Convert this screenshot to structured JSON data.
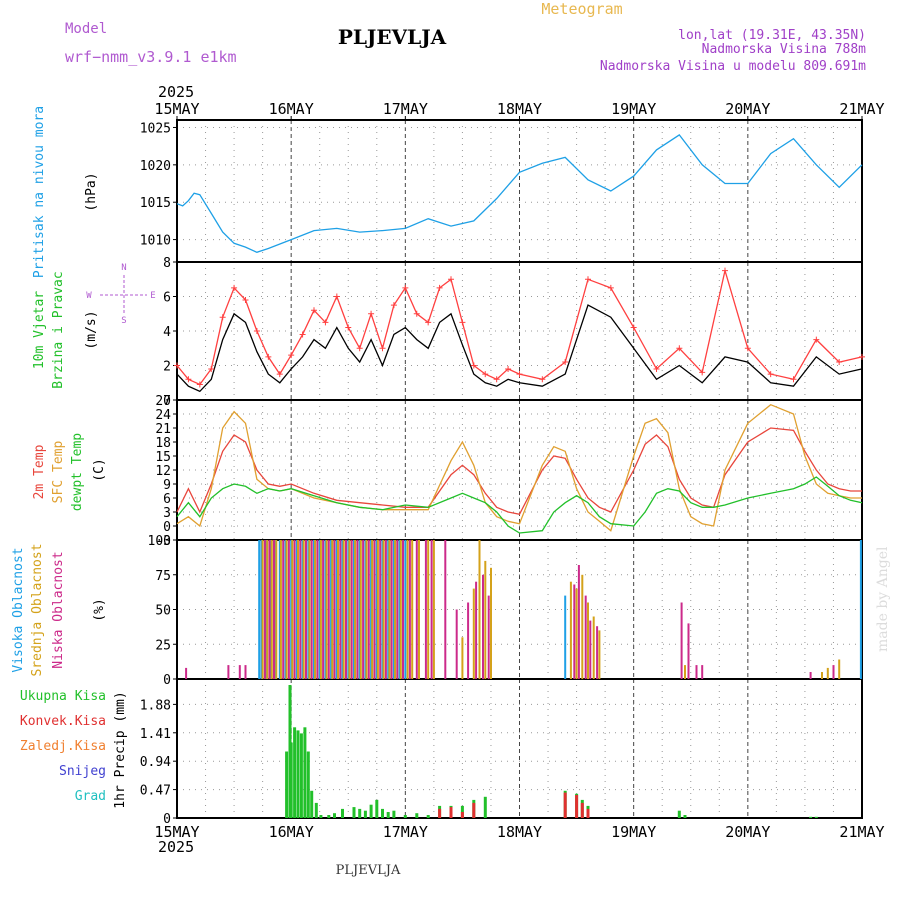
{
  "header": {
    "model_label": "Model",
    "model_name": "wrf−nmm_v3.9.1  e1km",
    "station": "PLJEVLJA",
    "meteogram": "Meteogram",
    "lonlat": "lon,lat (19.31E, 43.35N)",
    "elevation": "Nadmorska Visina 788m",
    "model_elevation": "Nadmorska Visina u modelu 809.691m",
    "footer_station": "PLJEVLJA",
    "watermark": "made by Angel"
  },
  "colors": {
    "pressure": "#1ea0e6",
    "temp2m": "#e8463c",
    "sfc": "#e0a030",
    "dewpt": "#22c02a",
    "wind_speed": "#000000",
    "wind_gust": "#ff4040",
    "high_cloud": "#1ea0e6",
    "mid_cloud": "#d4a21a",
    "low_cloud": "#cc2a8a",
    "total_precip": "#22c02a",
    "conv_precip": "#e03030",
    "frozen_precip": "#f08030",
    "snow": "#4040d0",
    "hail": "#20c0c0",
    "model_label": "#b05ad0",
    "meteogram": "#e8b850",
    "info": "#a040c8"
  },
  "time_axis": {
    "top_year": "2025",
    "bottom_year": "2025",
    "labels": [
      "15MAY",
      "16MAY",
      "17MAY",
      "18MAY",
      "19MAY",
      "20MAY",
      "21MAY"
    ]
  },
  "chart_data": [
    {
      "type": "line",
      "id": "pressure",
      "ylabel_title": "Pritisak na nivou mora",
      "unit": "(hPa)",
      "ylim": [
        1007,
        1026
      ],
      "yticks": [
        1010,
        1015,
        1020,
        1025
      ],
      "grid": true,
      "x_days": [
        0,
        0.05,
        0.1,
        0.15,
        0.2,
        0.3,
        0.4,
        0.5,
        0.6,
        0.7,
        0.8,
        1.0,
        1.2,
        1.4,
        1.6,
        1.8,
        2.0,
        2.2,
        2.4,
        2.6,
        2.8,
        3.0,
        3.2,
        3.4,
        3.6,
        3.8,
        4.0,
        4.2,
        4.4,
        4.6,
        4.8,
        5.0,
        5.2,
        5.4,
        5.6,
        5.8,
        6.0
      ],
      "series": [
        {
          "key": "pressure",
          "values": [
            1014.8,
            1014.5,
            1015.2,
            1016.2,
            1016.0,
            1013.5,
            1011.0,
            1009.5,
            1009.0,
            1008.3,
            1008.8,
            1010.0,
            1011.2,
            1011.5,
            1011.0,
            1011.2,
            1011.5,
            1012.8,
            1011.8,
            1012.5,
            1015.5,
            1019.0,
            1020.2,
            1021.0,
            1018.0,
            1016.5,
            1018.5,
            1022.0,
            1024.0,
            1020.0,
            1017.5,
            1017.5,
            1021.5,
            1023.5,
            1020.0,
            1017.0,
            1020.0
          ]
        }
      ]
    },
    {
      "type": "line",
      "id": "wind",
      "ylabel_title": "10m Vjetar",
      "ylabel_title2": "Brzina i Pravac",
      "unit": "(m/s)",
      "compass": [
        "N",
        "S",
        "E",
        "W"
      ],
      "ylim": [
        0,
        8
      ],
      "yticks": [
        0,
        2,
        4,
        6,
        8
      ],
      "grid": true,
      "x_days": [
        0,
        0.1,
        0.2,
        0.3,
        0.4,
        0.5,
        0.6,
        0.7,
        0.8,
        0.9,
        1.0,
        1.1,
        1.2,
        1.3,
        1.4,
        1.5,
        1.6,
        1.7,
        1.8,
        1.9,
        2.0,
        2.1,
        2.2,
        2.3,
        2.4,
        2.5,
        2.6,
        2.7,
        2.8,
        2.9,
        3.0,
        3.2,
        3.4,
        3.6,
        3.8,
        4.0,
        4.2,
        4.4,
        4.6,
        4.8,
        5.0,
        5.2,
        5.4,
        5.6,
        5.8,
        6.0
      ],
      "series": [
        {
          "key": "wind_speed",
          "values": [
            1.5,
            0.8,
            0.5,
            1.2,
            3.5,
            5.0,
            4.5,
            2.8,
            1.5,
            1.0,
            1.8,
            2.5,
            3.5,
            3.0,
            4.2,
            3.0,
            2.2,
            3.5,
            2.0,
            3.8,
            4.2,
            3.5,
            3.0,
            4.5,
            5.0,
            3.2,
            1.5,
            1.0,
            0.8,
            1.2,
            1.0,
            0.8,
            1.5,
            5.5,
            4.8,
            3.0,
            1.2,
            2.0,
            1.0,
            2.5,
            2.2,
            1.0,
            0.8,
            2.5,
            1.5,
            1.8
          ]
        },
        {
          "key": "wind_gust",
          "values": [
            2.0,
            1.2,
            0.9,
            1.8,
            4.8,
            6.5,
            5.8,
            4.0,
            2.5,
            1.5,
            2.6,
            3.8,
            5.2,
            4.5,
            6.0,
            4.2,
            3.0,
            5.0,
            3.0,
            5.5,
            6.5,
            5.0,
            4.5,
            6.5,
            7.0,
            4.5,
            2.0,
            1.5,
            1.2,
            1.8,
            1.5,
            1.2,
            2.2,
            7.0,
            6.5,
            4.2,
            1.8,
            3.0,
            1.6,
            7.5,
            3.0,
            1.5,
            1.2,
            3.5,
            2.2,
            2.5
          ]
        }
      ]
    },
    {
      "type": "line",
      "id": "temperature",
      "ylabel_title": "2m Temp",
      "ylabel_title2": "SFC Temp",
      "ylabel_title3": "dewpt Temp",
      "unit": "(C)",
      "ylim": [
        -3,
        27
      ],
      "yticks": [
        -3,
        0,
        3,
        6,
        9,
        12,
        15,
        18,
        21,
        24,
        27
      ],
      "grid": true,
      "x_days": [
        0,
        0.1,
        0.2,
        0.3,
        0.4,
        0.5,
        0.6,
        0.7,
        0.8,
        0.9,
        1.0,
        1.2,
        1.4,
        1.6,
        1.8,
        2.0,
        2.2,
        2.4,
        2.5,
        2.6,
        2.7,
        2.8,
        2.9,
        3.0,
        3.2,
        3.3,
        3.4,
        3.5,
        3.6,
        3.7,
        3.8,
        4.0,
        4.1,
        4.2,
        4.3,
        4.4,
        4.5,
        4.6,
        4.7,
        4.8,
        5.0,
        5.2,
        5.4,
        5.5,
        5.6,
        5.7,
        5.8,
        5.9,
        6.0
      ],
      "series": [
        {
          "key": "temp2m",
          "values": [
            3.0,
            8.0,
            3.0,
            9.0,
            16.0,
            19.5,
            18.0,
            12.0,
            9.0,
            8.5,
            9.0,
            7.0,
            5.5,
            5.0,
            4.5,
            4.0,
            4.0,
            11.0,
            13.0,
            11.0,
            7.0,
            4.0,
            3.0,
            2.5,
            12.0,
            15.0,
            14.5,
            10.0,
            6.0,
            4.0,
            3.0,
            12.0,
            17.5,
            19.5,
            17.0,
            10.0,
            6.0,
            4.5,
            4.0,
            11.0,
            18.0,
            21.0,
            20.5,
            16.0,
            12.0,
            9.0,
            8.0,
            7.5,
            7.5
          ]
        },
        {
          "key": "sfc",
          "values": [
            0.5,
            2.0,
            0.0,
            8.0,
            21.0,
            24.5,
            22.0,
            10.0,
            8.0,
            7.5,
            8.0,
            6.0,
            5.0,
            4.0,
            3.5,
            3.5,
            3.5,
            14.0,
            18.0,
            13.0,
            5.0,
            2.0,
            1.0,
            0.5,
            13.0,
            17.0,
            16.0,
            8.0,
            3.0,
            1.0,
            -1.0,
            15.0,
            22.0,
            23.0,
            20.0,
            8.0,
            2.0,
            0.5,
            0.0,
            12.0,
            22.0,
            26.0,
            24.0,
            15.0,
            9.0,
            7.0,
            6.5,
            6.0,
            6.0
          ]
        },
        {
          "key": "dewpt",
          "values": [
            2.0,
            5.0,
            2.0,
            6.0,
            8.0,
            9.0,
            8.5,
            7.0,
            8.0,
            7.5,
            8.0,
            6.5,
            5.0,
            4.0,
            3.5,
            4.5,
            4.0,
            6.0,
            7.0,
            6.0,
            5.0,
            3.0,
            0.0,
            -1.5,
            -1.0,
            3.0,
            5.0,
            6.5,
            5.0,
            2.0,
            0.5,
            0.0,
            3.0,
            7.0,
            8.0,
            7.5,
            5.0,
            4.0,
            4.0,
            4.5,
            6.0,
            7.0,
            8.0,
            9.0,
            10.5,
            8.5,
            6.5,
            5.5,
            5.0
          ]
        }
      ]
    },
    {
      "type": "bar",
      "id": "clouds",
      "ylabel_title": "Visoka Oblacnost",
      "ylabel_title2": "Srednja Oblacnost",
      "ylabel_title3": "Niska Oblacnost",
      "unit": "(%)",
      "ylim": [
        0,
        100
      ],
      "yticks": [
        0,
        25,
        50,
        75,
        100
      ],
      "grid": true,
      "series": [
        {
          "key": "high_cloud",
          "x_days": [
            0.72,
            0.74,
            0.78,
            0.82,
            0.86,
            0.9,
            0.95,
            1.0,
            1.05,
            1.1,
            1.15,
            1.2,
            1.25,
            1.3,
            1.35,
            1.4,
            1.45,
            1.5,
            1.55,
            1.6,
            1.65,
            1.7,
            1.75,
            1.8,
            1.85,
            1.9,
            1.95,
            2.0,
            3.4,
            5.99
          ],
          "values": [
            100,
            100,
            100,
            100,
            100,
            100,
            100,
            100,
            100,
            100,
            100,
            100,
            100,
            100,
            100,
            100,
            100,
            100,
            100,
            100,
            100,
            100,
            100,
            100,
            100,
            100,
            100,
            100,
            60,
            100
          ]
        },
        {
          "key": "mid_cloud",
          "x_days": [
            0.75,
            0.79,
            0.83,
            0.87,
            0.91,
            0.96,
            1.01,
            1.06,
            1.11,
            1.16,
            1.21,
            1.26,
            1.31,
            1.36,
            1.41,
            1.46,
            1.51,
            1.56,
            1.61,
            1.66,
            1.71,
            1.76,
            1.81,
            1.86,
            1.91,
            1.96,
            2.02,
            2.06,
            2.12,
            2.2,
            2.25,
            2.5,
            2.6,
            2.65,
            2.7,
            2.75,
            3.45,
            3.5,
            3.55,
            3.6,
            3.65,
            3.7,
            4.45,
            5.65,
            5.7,
            5.8
          ],
          "values": [
            100,
            100,
            100,
            100,
            100,
            100,
            100,
            100,
            100,
            100,
            100,
            100,
            100,
            100,
            100,
            100,
            100,
            100,
            100,
            100,
            100,
            100,
            100,
            100,
            100,
            100,
            100,
            100,
            100,
            100,
            100,
            30,
            65,
            100,
            85,
            80,
            70,
            65,
            75,
            55,
            45,
            35,
            10,
            5,
            8,
            14
          ]
        },
        {
          "key": "low_cloud",
          "x_days": [
            0.08,
            0.45,
            0.55,
            0.6,
            0.77,
            0.81,
            0.85,
            0.93,
            0.98,
            1.03,
            1.08,
            1.13,
            1.18,
            1.23,
            1.28,
            1.33,
            1.38,
            1.43,
            1.48,
            1.53,
            1.58,
            1.63,
            1.68,
            1.73,
            1.78,
            1.83,
            1.88,
            1.93,
            1.98,
            2.04,
            2.1,
            2.18,
            2.23,
            2.35,
            2.45,
            2.55,
            2.62,
            2.68,
            2.73,
            3.48,
            3.52,
            3.58,
            3.62,
            3.68,
            4.42,
            4.48,
            4.55,
            4.6,
            5.55,
            5.75
          ],
          "values": [
            8,
            10,
            10,
            10,
            100,
            100,
            100,
            100,
            100,
            100,
            100,
            100,
            100,
            100,
            100,
            100,
            100,
            100,
            100,
            100,
            100,
            100,
            100,
            100,
            100,
            100,
            100,
            100,
            100,
            100,
            100,
            100,
            100,
            100,
            50,
            55,
            70,
            75,
            60,
            68,
            82,
            60,
            42,
            38,
            55,
            40,
            10,
            10,
            5,
            10
          ]
        }
      ]
    },
    {
      "type": "bar",
      "id": "precip",
      "unit": "1hr Precip (mm)",
      "legend": [
        "Ukupna Kisa",
        "Konvek.Kisa",
        "Zaledj.Kisa",
        "Snijeg",
        "Grad"
      ],
      "ylim": [
        0,
        2.3
      ],
      "yticks": [
        0,
        0.47,
        0.94,
        1.41,
        1.88
      ],
      "grid": true,
      "series": [
        {
          "key": "total_precip",
          "x_days": [
            0.96,
            0.99,
            1.0,
            1.03,
            1.06,
            1.09,
            1.12,
            1.15,
            1.18,
            1.22,
            1.26,
            1.33,
            1.38,
            1.45,
            1.55,
            1.6,
            1.65,
            1.7,
            1.75,
            1.8,
            1.85,
            1.9,
            2.0,
            2.1,
            2.2,
            2.3,
            2.4,
            2.5,
            2.6,
            2.7,
            3.4,
            3.5,
            3.55,
            3.6,
            4.4,
            4.45,
            5.55,
            5.6
          ],
          "values": [
            1.1,
            2.2,
            1.25,
            1.5,
            1.45,
            1.4,
            1.5,
            1.1,
            0.45,
            0.25,
            0.05,
            0.05,
            0.08,
            0.15,
            0.18,
            0.15,
            0.12,
            0.22,
            0.3,
            0.15,
            0.1,
            0.12,
            0.05,
            0.08,
            0.05,
            0.2,
            0.2,
            0.2,
            0.3,
            0.35,
            0.45,
            0.4,
            0.3,
            0.2,
            0.12,
            0.05,
            0.02,
            0.02
          ]
        },
        {
          "key": "conv_precip",
          "x_days": [
            2.3,
            2.4,
            2.5,
            2.6,
            3.4,
            3.5,
            3.55,
            3.6
          ],
          "values": [
            0.15,
            0.18,
            0.1,
            0.25,
            0.42,
            0.38,
            0.25,
            0.15
          ]
        }
      ]
    }
  ]
}
